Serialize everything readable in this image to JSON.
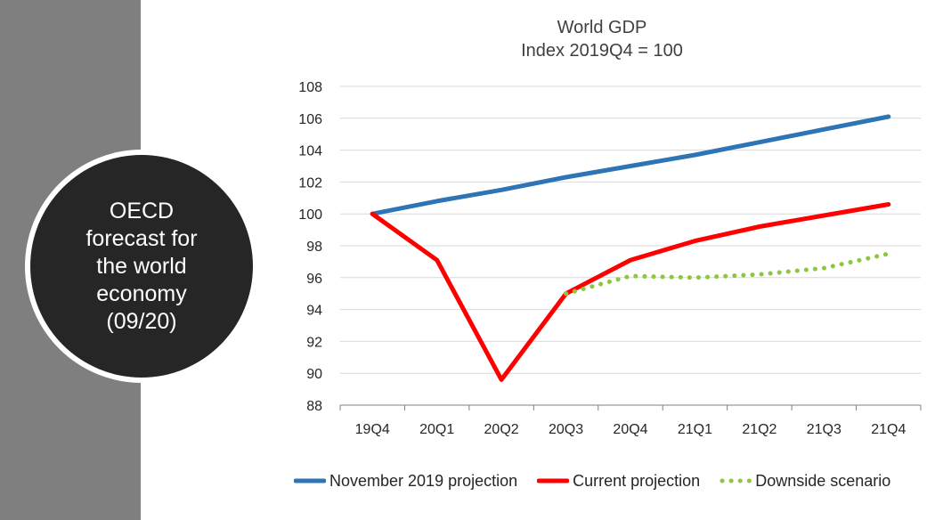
{
  "sidebar": {
    "badge_lines": [
      "OECD",
      "forecast for",
      "the world",
      "economy",
      "(09/20)"
    ],
    "band_color": "#7f7f7f",
    "circle_color": "#262626"
  },
  "chart_data": {
    "type": "line",
    "title": [
      "World GDP",
      "Index 2019Q4 = 100"
    ],
    "xlabel": "",
    "ylabel": "",
    "categories": [
      "19Q4",
      "20Q1",
      "20Q2",
      "20Q3",
      "20Q4",
      "21Q1",
      "21Q2",
      "21Q3",
      "21Q4"
    ],
    "ylim": [
      88,
      108
    ],
    "yticks": [
      88,
      90,
      92,
      94,
      96,
      98,
      100,
      102,
      104,
      106,
      108
    ],
    "grid": true,
    "legend_position": "bottom",
    "series": [
      {
        "name": "November 2019 projection",
        "color": "#2e75b6",
        "style": "solid",
        "values": [
          100.0,
          100.8,
          101.5,
          102.3,
          103.0,
          103.7,
          104.5,
          105.3,
          106.1
        ]
      },
      {
        "name": "Current projection",
        "color": "#ff0000",
        "style": "solid",
        "values": [
          100.0,
          97.1,
          89.6,
          95.0,
          97.1,
          98.3,
          99.2,
          99.9,
          100.6
        ]
      },
      {
        "name": "Downside scenario",
        "color": "#8dc63f",
        "style": "dotted",
        "values": [
          null,
          null,
          null,
          95.0,
          96.1,
          96.0,
          96.2,
          96.6,
          97.5
        ]
      }
    ]
  }
}
